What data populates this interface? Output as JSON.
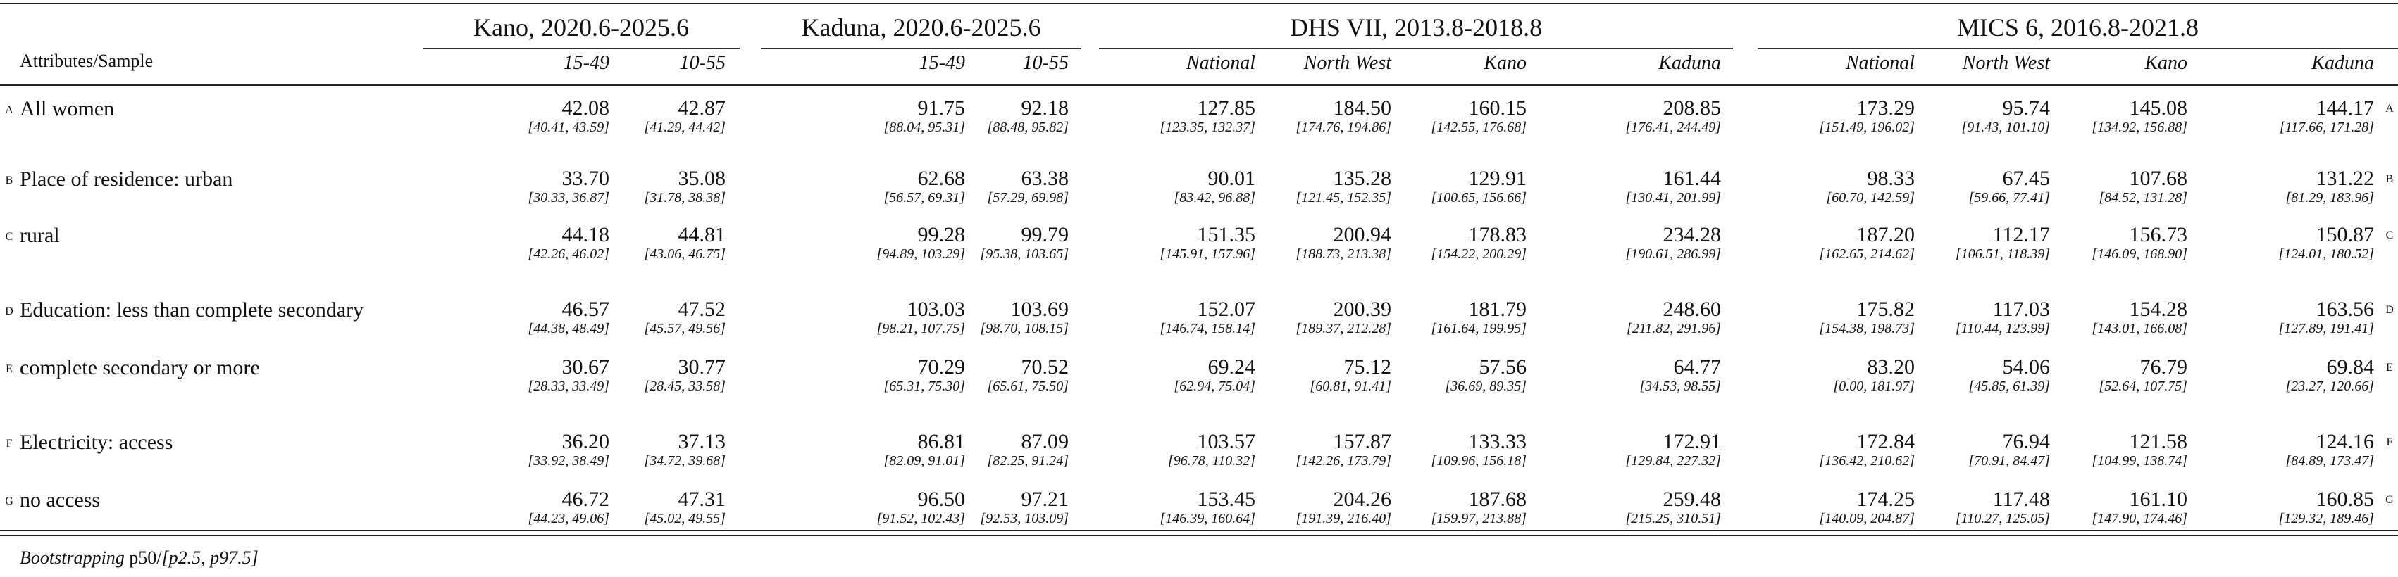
{
  "header": {
    "row_label": "Attributes/Sample",
    "groups": [
      {
        "title": "Kano, 2020.6-2025.6",
        "cols": [
          "15-49",
          "10-55"
        ]
      },
      {
        "title": "Kaduna, 2020.6-2025.6",
        "cols": [
          "15-49",
          "10-55"
        ]
      },
      {
        "title": "DHS VII, 2013.8-2018.8",
        "cols": [
          "National",
          "North West",
          "Kano",
          "Kaduna"
        ]
      },
      {
        "title": "MICS 6, 2016.8-2021.8",
        "cols": [
          "National",
          "North West",
          "Kano",
          "Kaduna"
        ]
      }
    ]
  },
  "rows": [
    {
      "letter": "A",
      "label": "All women",
      "cells": [
        {
          "v": "42.08",
          "ci": "[40.41, 43.59]"
        },
        {
          "v": "42.87",
          "ci": "[41.29, 44.42]"
        },
        {
          "v": "91.75",
          "ci": "[88.04, 95.31]"
        },
        {
          "v": "92.18",
          "ci": "[88.48, 95.82]"
        },
        {
          "v": "127.85",
          "ci": "[123.35, 132.37]"
        },
        {
          "v": "184.50",
          "ci": "[174.76, 194.86]"
        },
        {
          "v": "160.15",
          "ci": "[142.55, 176.68]"
        },
        {
          "v": "208.85",
          "ci": "[176.41, 244.49]"
        },
        {
          "v": "173.29",
          "ci": "[151.49, 196.02]"
        },
        {
          "v": "95.74",
          "ci": "[91.43, 101.10]"
        },
        {
          "v": "145.08",
          "ci": "[134.92, 156.88]"
        },
        {
          "v": "144.17",
          "ci": "[117.66, 171.28]"
        }
      ]
    },
    {
      "letter": "B",
      "label": "Place of residence: urban",
      "cells": [
        {
          "v": "33.70",
          "ci": "[30.33, 36.87]"
        },
        {
          "v": "35.08",
          "ci": "[31.78, 38.38]"
        },
        {
          "v": "62.68",
          "ci": "[56.57, 69.31]"
        },
        {
          "v": "63.38",
          "ci": "[57.29, 69.98]"
        },
        {
          "v": "90.01",
          "ci": "[83.42, 96.88]"
        },
        {
          "v": "135.28",
          "ci": "[121.45, 152.35]"
        },
        {
          "v": "129.91",
          "ci": "[100.65, 156.66]"
        },
        {
          "v": "161.44",
          "ci": "[130.41, 201.99]"
        },
        {
          "v": "98.33",
          "ci": "[60.70, 142.59]"
        },
        {
          "v": "67.45",
          "ci": "[59.66, 77.41]"
        },
        {
          "v": "107.68",
          "ci": "[84.52, 131.28]"
        },
        {
          "v": "131.22",
          "ci": "[81.29, 183.96]"
        }
      ]
    },
    {
      "letter": "C",
      "label": "rural",
      "cells": [
        {
          "v": "44.18",
          "ci": "[42.26, 46.02]"
        },
        {
          "v": "44.81",
          "ci": "[43.06, 46.75]"
        },
        {
          "v": "99.28",
          "ci": "[94.89, 103.29]"
        },
        {
          "v": "99.79",
          "ci": "[95.38, 103.65]"
        },
        {
          "v": "151.35",
          "ci": "[145.91, 157.96]"
        },
        {
          "v": "200.94",
          "ci": "[188.73, 213.38]"
        },
        {
          "v": "178.83",
          "ci": "[154.22, 200.29]"
        },
        {
          "v": "234.28",
          "ci": "[190.61, 286.99]"
        },
        {
          "v": "187.20",
          "ci": "[162.65, 214.62]"
        },
        {
          "v": "112.17",
          "ci": "[106.51, 118.39]"
        },
        {
          "v": "156.73",
          "ci": "[146.09, 168.90]"
        },
        {
          "v": "150.87",
          "ci": "[124.01, 180.52]"
        }
      ]
    },
    {
      "letter": "D",
      "label": "Education: less than complete secondary",
      "cells": [
        {
          "v": "46.57",
          "ci": "[44.38, 48.49]"
        },
        {
          "v": "47.52",
          "ci": "[45.57, 49.56]"
        },
        {
          "v": "103.03",
          "ci": "[98.21, 107.75]"
        },
        {
          "v": "103.69",
          "ci": "[98.70, 108.15]"
        },
        {
          "v": "152.07",
          "ci": "[146.74, 158.14]"
        },
        {
          "v": "200.39",
          "ci": "[189.37, 212.28]"
        },
        {
          "v": "181.79",
          "ci": "[161.64, 199.95]"
        },
        {
          "v": "248.60",
          "ci": "[211.82, 291.96]"
        },
        {
          "v": "175.82",
          "ci": "[154.38, 198.73]"
        },
        {
          "v": "117.03",
          "ci": "[110.44, 123.99]"
        },
        {
          "v": "154.28",
          "ci": "[143.01, 166.08]"
        },
        {
          "v": "163.56",
          "ci": "[127.89, 191.41]"
        }
      ]
    },
    {
      "letter": "E",
      "label": "complete secondary or more",
      "cells": [
        {
          "v": "30.67",
          "ci": "[28.33, 33.49]"
        },
        {
          "v": "30.77",
          "ci": "[28.45, 33.58]"
        },
        {
          "v": "70.29",
          "ci": "[65.31, 75.30]"
        },
        {
          "v": "70.52",
          "ci": "[65.61, 75.50]"
        },
        {
          "v": "69.24",
          "ci": "[62.94, 75.04]"
        },
        {
          "v": "75.12",
          "ci": "[60.81, 91.41]"
        },
        {
          "v": "57.56",
          "ci": "[36.69, 89.35]"
        },
        {
          "v": "64.77",
          "ci": "[34.53, 98.55]"
        },
        {
          "v": "83.20",
          "ci": "[0.00, 181.97]"
        },
        {
          "v": "54.06",
          "ci": "[45.85, 61.39]"
        },
        {
          "v": "76.79",
          "ci": "[52.64, 107.75]"
        },
        {
          "v": "69.84",
          "ci": "[23.27, 120.66]"
        }
      ]
    },
    {
      "letter": "F",
      "label": "Electricity: access",
      "cells": [
        {
          "v": "36.20",
          "ci": "[33.92, 38.49]"
        },
        {
          "v": "37.13",
          "ci": "[34.72, 39.68]"
        },
        {
          "v": "86.81",
          "ci": "[82.09, 91.01]"
        },
        {
          "v": "87.09",
          "ci": "[82.25, 91.24]"
        },
        {
          "v": "103.57",
          "ci": "[96.78, 110.32]"
        },
        {
          "v": "157.87",
          "ci": "[142.26, 173.79]"
        },
        {
          "v": "133.33",
          "ci": "[109.96, 156.18]"
        },
        {
          "v": "172.91",
          "ci": "[129.84, 227.32]"
        },
        {
          "v": "172.84",
          "ci": "[136.42, 210.62]"
        },
        {
          "v": "76.94",
          "ci": "[70.91, 84.47]"
        },
        {
          "v": "121.58",
          "ci": "[104.99, 138.74]"
        },
        {
          "v": "124.16",
          "ci": "[84.89, 173.47]"
        }
      ]
    },
    {
      "letter": "G",
      "label": "no access",
      "cells": [
        {
          "v": "46.72",
          "ci": "[44.23, 49.06]"
        },
        {
          "v": "47.31",
          "ci": "[45.02, 49.55]"
        },
        {
          "v": "96.50",
          "ci": "[91.52, 102.43]"
        },
        {
          "v": "97.21",
          "ci": "[92.53, 103.09]"
        },
        {
          "v": "153.45",
          "ci": "[146.39, 160.64]"
        },
        {
          "v": "204.26",
          "ci": "[191.39, 216.40]"
        },
        {
          "v": "187.68",
          "ci": "[159.97, 213.88]"
        },
        {
          "v": "259.48",
          "ci": "[215.25, 310.51]"
        },
        {
          "v": "174.25",
          "ci": "[140.09, 204.87]"
        },
        {
          "v": "117.48",
          "ci": "[110.27, 125.05]"
        },
        {
          "v": "161.10",
          "ci": "[147.90, 174.46]"
        },
        {
          "v": "160.85",
          "ci": "[129.32, 189.46]"
        }
      ]
    }
  ],
  "footer": {
    "method": "Bootstrapping",
    "stat": "p50/",
    "interval": "[p2.5, p97.5]"
  }
}
